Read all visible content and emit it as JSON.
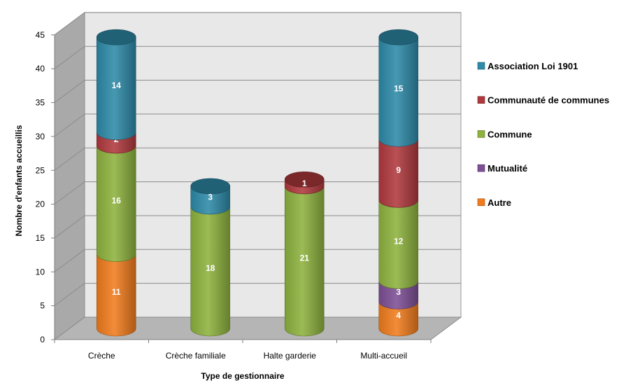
{
  "chart_data": {
    "type": "bar",
    "stacked": true,
    "style": "3d-cylinder",
    "xlabel": "Type de gestionnaire",
    "ylabel": "Nombre d'enfants accueillis",
    "ylim": [
      0,
      45
    ],
    "yticks": [
      0,
      5,
      10,
      15,
      20,
      25,
      30,
      35,
      40,
      45
    ],
    "grid": true,
    "legend_position": "right",
    "categories": [
      "Crèche",
      "Crèche familiale",
      "Halte garderie",
      "Multi-accueil"
    ],
    "series": [
      {
        "name": "Autre",
        "color": "#f07c1e",
        "values": [
          11,
          0,
          0,
          4
        ]
      },
      {
        "name": "Mutualité",
        "color": "#7d4f95",
        "values": [
          0,
          0,
          0,
          3
        ]
      },
      {
        "name": "Commune",
        "color": "#8db23e",
        "values": [
          16,
          18,
          21,
          12
        ]
      },
      {
        "name": "Communauté de communes",
        "color": "#b0393e",
        "values": [
          2,
          0,
          1,
          9
        ]
      },
      {
        "name": "Association Loi 1901",
        "color": "#2e8aa8",
        "values": [
          14,
          3,
          0,
          15
        ]
      }
    ],
    "legend_order": [
      "Association Loi 1901",
      "Communauté de communes",
      "Commune",
      "Mutualité",
      "Autre"
    ]
  }
}
